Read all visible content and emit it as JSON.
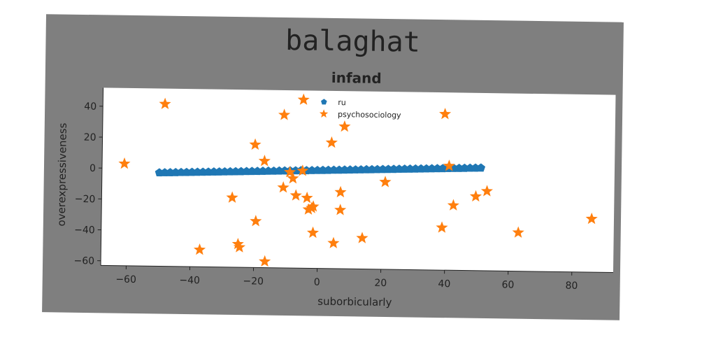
{
  "figure": {
    "suptitle": "balaghat",
    "colors": {
      "figure_bg": "#7f7f7f",
      "plot_bg": "#ffffff",
      "series_line": "#1f77b4",
      "series_stars": "#ff7f0e",
      "text": "#222222"
    }
  },
  "chart_data": {
    "type": "scatter",
    "title": "infand",
    "xlabel": "suborbicularly",
    "ylabel": "overexpressiveness",
    "xlim": [
      -68,
      93
    ],
    "ylim": [
      -63,
      52
    ],
    "grid": false,
    "legend_position": "top-center",
    "xticks": [
      -60,
      -40,
      -20,
      0,
      20,
      40,
      60,
      80
    ],
    "yticks": [
      40,
      20,
      0,
      -20,
      -40,
      -60
    ],
    "series": [
      {
        "name": "ru",
        "marker": "pentagon",
        "color": "#1f77b4",
        "x_start": -50,
        "x_end": 51,
        "y_start": -2.5,
        "y_end": 3.5,
        "count": 60
      },
      {
        "name": "psychosociology",
        "marker": "star",
        "color": "#ff7f0e",
        "points": [
          [
            -61,
            3
          ],
          [
            -48.5,
            42
          ],
          [
            -37,
            -52
          ],
          [
            -27,
            -18
          ],
          [
            -25,
            -48
          ],
          [
            -24.5,
            -50
          ],
          [
            -20,
            16.5
          ],
          [
            -19.5,
            -33
          ],
          [
            -17,
            6
          ],
          [
            -16.5,
            -59
          ],
          [
            -11,
            36
          ],
          [
            -11,
            -11
          ],
          [
            -9,
            -1
          ],
          [
            -8,
            -5
          ],
          [
            -7,
            -16
          ],
          [
            -5,
            46
          ],
          [
            -5,
            0
          ],
          [
            -3.5,
            -17.5
          ],
          [
            -3,
            -25
          ],
          [
            -2,
            -24
          ],
          [
            -1.5,
            -23
          ],
          [
            -1.5,
            -40
          ],
          [
            4,
            18.5
          ],
          [
            5,
            -46.5
          ],
          [
            7,
            -13.5
          ],
          [
            7,
            -25
          ],
          [
            8,
            29
          ],
          [
            14,
            -43
          ],
          [
            21,
            -6.5
          ],
          [
            39,
            -35.5
          ],
          [
            39.5,
            38
          ],
          [
            41,
            4.5
          ],
          [
            42.5,
            -21
          ],
          [
            49.5,
            -15
          ],
          [
            53,
            -11.5
          ],
          [
            63,
            -38
          ],
          [
            86,
            -28.5
          ]
        ]
      }
    ]
  }
}
